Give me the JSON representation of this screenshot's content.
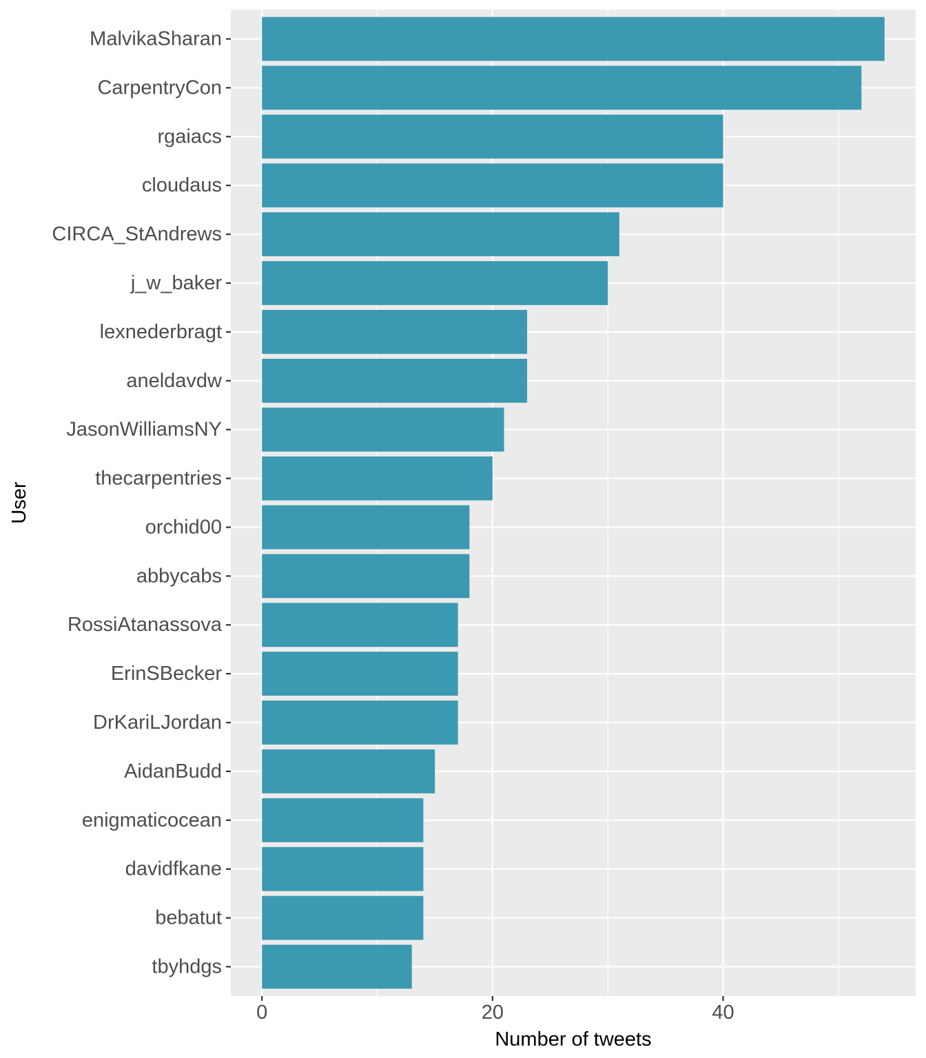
{
  "chart_data": {
    "type": "bar",
    "orientation": "horizontal",
    "title": "",
    "xlabel": "Number of tweets",
    "ylabel": "User",
    "categories": [
      "MalvikaSharan",
      "CarpentryCon",
      "rgaiacs",
      "cloudaus",
      "CIRCA_StAndrews",
      "j_w_baker",
      "lexnederbragt",
      "aneldavdw",
      "JasonWilliamsNY",
      "thecarpentries",
      "orchid00",
      "abbycabs",
      "RossiAtanassova",
      "ErinSBecker",
      "DrKariLJordan",
      "AidanBudd",
      "enigmaticocean",
      "davidfkane",
      "bebatut",
      "tbyhdgs"
    ],
    "values": [
      54,
      52,
      40,
      40,
      31,
      30,
      23,
      23,
      21,
      20,
      18,
      18,
      17,
      17,
      17,
      15,
      14,
      14,
      14,
      13
    ],
    "xlim": [
      -2.7,
      56.7
    ],
    "xticks": [
      "0",
      "20",
      "40"
    ],
    "xtick_values": [
      0,
      20,
      40
    ],
    "grid": true,
    "legend": "none",
    "colors": {
      "bar": "#3c99b2",
      "panel": "#ebebeb",
      "grid": "#ffffff"
    }
  }
}
